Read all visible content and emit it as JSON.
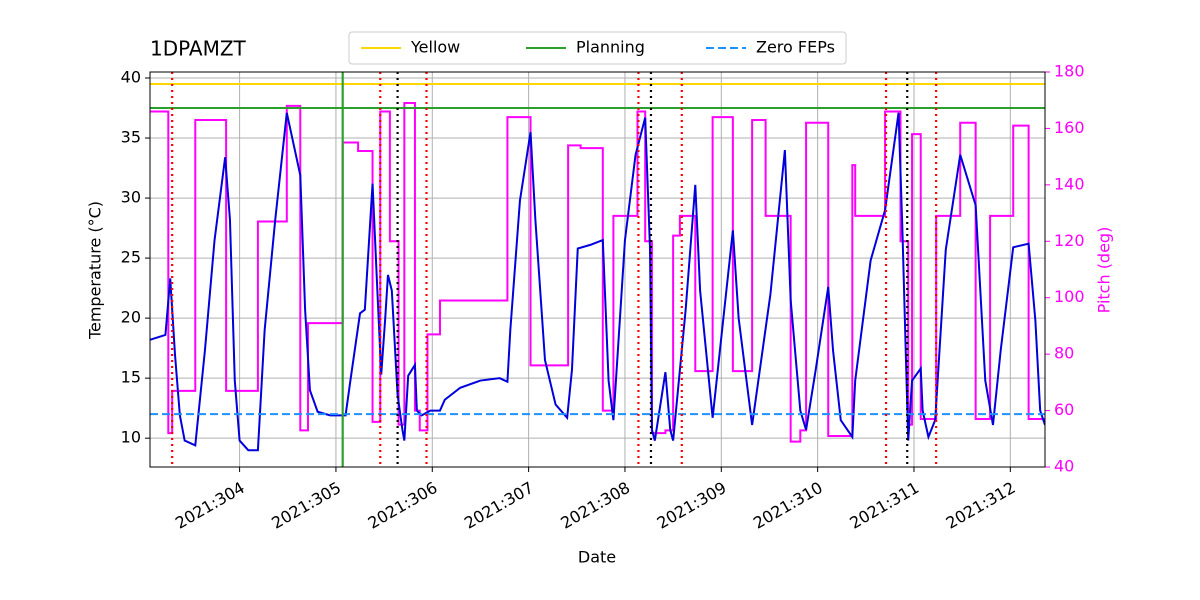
{
  "chart_data": {
    "type": "line",
    "title": "1DPAMZT",
    "xlabel": "Date",
    "ylabel": "Temperature (°C)",
    "y2label": "Pitch (deg)",
    "y2color": "magenta",
    "grid": true,
    "legend": "upper center",
    "xlim": [
      303.07,
      312.36
    ],
    "xticks": [
      {
        "value": 304,
        "label": "2021:304"
      },
      {
        "value": 305,
        "label": "2021:305"
      },
      {
        "value": 306,
        "label": "2021:306"
      },
      {
        "value": 307,
        "label": "2021:307"
      },
      {
        "value": 308,
        "label": "2021:308"
      },
      {
        "value": 309,
        "label": "2021:309"
      },
      {
        "value": 310,
        "label": "2021:310"
      },
      {
        "value": 311,
        "label": "2021:311"
      },
      {
        "value": 312,
        "label": "2021:312"
      }
    ],
    "ylim": [
      7.6,
      40.5
    ],
    "yticks": [
      10,
      15,
      20,
      25,
      30,
      35,
      40
    ],
    "y2lim": [
      40,
      180
    ],
    "y2ticks": [
      40,
      60,
      80,
      100,
      120,
      140,
      160,
      180
    ],
    "hlines": [
      {
        "name": "Yellow",
        "value": 39.5,
        "color": "gold",
        "style": "solid"
      },
      {
        "name": "Planning",
        "value": 37.5,
        "color": "#2ca02c",
        "style": "solid"
      },
      {
        "name": "Zero FEPs",
        "value": 12,
        "color": "#1e90ff",
        "style": "dashed"
      }
    ],
    "vlines": [
      {
        "x": 305.07,
        "color": "#2ca02c",
        "style": "solid"
      },
      {
        "x": 303.3,
        "color": "red",
        "style": "dotted"
      },
      {
        "x": 305.46,
        "color": "red",
        "style": "dotted"
      },
      {
        "x": 305.94,
        "color": "red",
        "style": "dotted"
      },
      {
        "x": 308.14,
        "color": "red",
        "style": "dotted"
      },
      {
        "x": 308.59,
        "color": "red",
        "style": "dotted"
      },
      {
        "x": 310.71,
        "color": "red",
        "style": "dotted"
      },
      {
        "x": 311.23,
        "color": "red",
        "style": "dotted"
      },
      {
        "x": 305.64,
        "color": "black",
        "style": "dotted"
      },
      {
        "x": 308.27,
        "color": "black",
        "style": "dotted"
      },
      {
        "x": 310.93,
        "color": "black",
        "style": "dotted"
      }
    ],
    "series": [
      {
        "color": "magenta",
        "axis": "y2",
        "x": [
          303.07,
          303.26,
          303.26,
          303.3,
          303.3,
          303.54,
          303.54,
          303.86,
          303.86,
          304.19,
          304.19,
          304.49,
          304.49,
          304.63,
          304.63,
          304.71,
          304.71,
          305.07,
          305.07,
          305.23,
          305.23,
          305.38,
          305.38,
          305.46,
          305.46,
          305.56,
          305.56,
          305.65,
          305.65,
          305.71,
          305.71,
          305.82,
          305.82,
          305.87,
          305.87,
          305.95,
          305.95,
          306.08,
          306.08,
          306.78,
          306.78,
          307.02,
          307.02,
          307.41,
          307.41,
          307.54,
          307.54,
          307.77,
          307.77,
          307.88,
          307.88,
          308.13,
          308.13,
          308.21,
          308.21,
          308.28,
          308.28,
          308.42,
          308.42,
          308.5,
          308.5,
          308.57,
          308.57,
          308.73,
          308.73,
          308.91,
          308.91,
          309.12,
          309.12,
          309.32,
          309.32,
          309.46,
          309.46,
          309.72,
          309.72,
          309.82,
          309.82,
          309.88,
          309.88,
          310.11,
          310.11,
          310.36,
          310.36,
          310.39,
          310.39,
          310.7,
          310.7,
          310.86,
          310.86,
          310.94,
          310.94,
          310.98,
          310.98,
          311.07,
          311.07,
          311.23,
          311.23,
          311.48,
          311.48,
          311.64,
          311.64,
          311.79,
          311.79,
          312.03,
          312.03,
          312.19,
          312.19,
          312.36
        ],
        "values": [
          166,
          166,
          52,
          52,
          67,
          67,
          163,
          163,
          67,
          67,
          127,
          127,
          168,
          168,
          53,
          53,
          91,
          91,
          155,
          155,
          152,
          152,
          56,
          56,
          166,
          166,
          120,
          120,
          55,
          55,
          169,
          169,
          60,
          60,
          53,
          53,
          87,
          87,
          99,
          99,
          164,
          164,
          76,
          76,
          154,
          154,
          153,
          153,
          60,
          60,
          129,
          129,
          166,
          166,
          120,
          120,
          52,
          52,
          53,
          53,
          122,
          122,
          129,
          129,
          74,
          74,
          164,
          164,
          74,
          74,
          163,
          163,
          129,
          129,
          49,
          49,
          53,
          53,
          162,
          162,
          51,
          51,
          147,
          147,
          129,
          129,
          166,
          166,
          120,
          120,
          55,
          55,
          158,
          158,
          57,
          57,
          129,
          129,
          162,
          162,
          57,
          57,
          129,
          129,
          161,
          161,
          57,
          57
        ]
      },
      {
        "color": "#0000dd",
        "axis": "y",
        "x": [
          303.07,
          303.23,
          303.28,
          303.33,
          303.38,
          303.43,
          303.54,
          303.64,
          303.74,
          303.85,
          303.9,
          303.95,
          304.0,
          304.09,
          304.19,
          304.26,
          304.37,
          304.49,
          304.63,
          304.68,
          304.73,
          304.81,
          304.94,
          305.1,
          305.15,
          305.25,
          305.3,
          305.38,
          305.43,
          305.47,
          305.51,
          305.54,
          305.58,
          305.64,
          305.69,
          305.71,
          305.75,
          305.82,
          305.84,
          305.89,
          305.98,
          306.08,
          306.13,
          306.29,
          306.5,
          306.7,
          306.78,
          306.81,
          306.91,
          307.02,
          307.07,
          307.17,
          307.28,
          307.4,
          307.45,
          307.51,
          307.64,
          307.77,
          307.83,
          307.88,
          308.0,
          308.11,
          308.21,
          308.26,
          308.28,
          308.31,
          308.42,
          308.47,
          308.5,
          308.63,
          308.73,
          308.78,
          308.91,
          309.12,
          309.18,
          309.32,
          309.51,
          309.66,
          309.72,
          309.82,
          309.88,
          309.98,
          310.11,
          310.16,
          310.24,
          310.36,
          310.39,
          310.55,
          310.7,
          310.84,
          310.88,
          310.94,
          310.98,
          311.07,
          311.09,
          311.15,
          311.22,
          311.33,
          311.48,
          311.64,
          311.74,
          311.82,
          311.9,
          312.03,
          312.19,
          312.26,
          312.31,
          312.36
        ],
        "values": [
          18.2,
          18.6,
          23.3,
          16.9,
          11.9,
          9.8,
          9.4,
          17.3,
          26.5,
          33.4,
          28.2,
          14.8,
          9.8,
          9.0,
          9.0,
          19.0,
          28.2,
          37.1,
          31.9,
          20.7,
          14.0,
          12.2,
          11.9,
          11.9,
          14.8,
          20.4,
          20.7,
          31.2,
          22.3,
          15.3,
          19.8,
          23.6,
          22.3,
          13.6,
          10.7,
          9.8,
          15.2,
          16.1,
          12.3,
          11.9,
          12.3,
          12.3,
          13.2,
          14.2,
          14.8,
          15.0,
          14.7,
          19.0,
          29.8,
          35.5,
          28.2,
          16.5,
          12.8,
          11.7,
          15.7,
          25.8,
          26.1,
          26.5,
          14.8,
          11.5,
          26.5,
          33.6,
          36.7,
          25.8,
          10.7,
          9.8,
          15.5,
          10.7,
          9.8,
          20.7,
          31.1,
          22.3,
          11.7,
          27.3,
          20.0,
          11.1,
          22.0,
          34.0,
          21.5,
          12.3,
          10.7,
          15.7,
          22.6,
          17.3,
          11.5,
          10.1,
          14.8,
          24.8,
          29.0,
          37.1,
          27.3,
          9.8,
          14.8,
          15.8,
          12.3,
          10.1,
          11.5,
          25.7,
          33.6,
          29.4,
          14.8,
          11.1,
          17.3,
          25.9,
          26.2,
          19.8,
          12.3,
          11.1
        ]
      }
    ]
  }
}
